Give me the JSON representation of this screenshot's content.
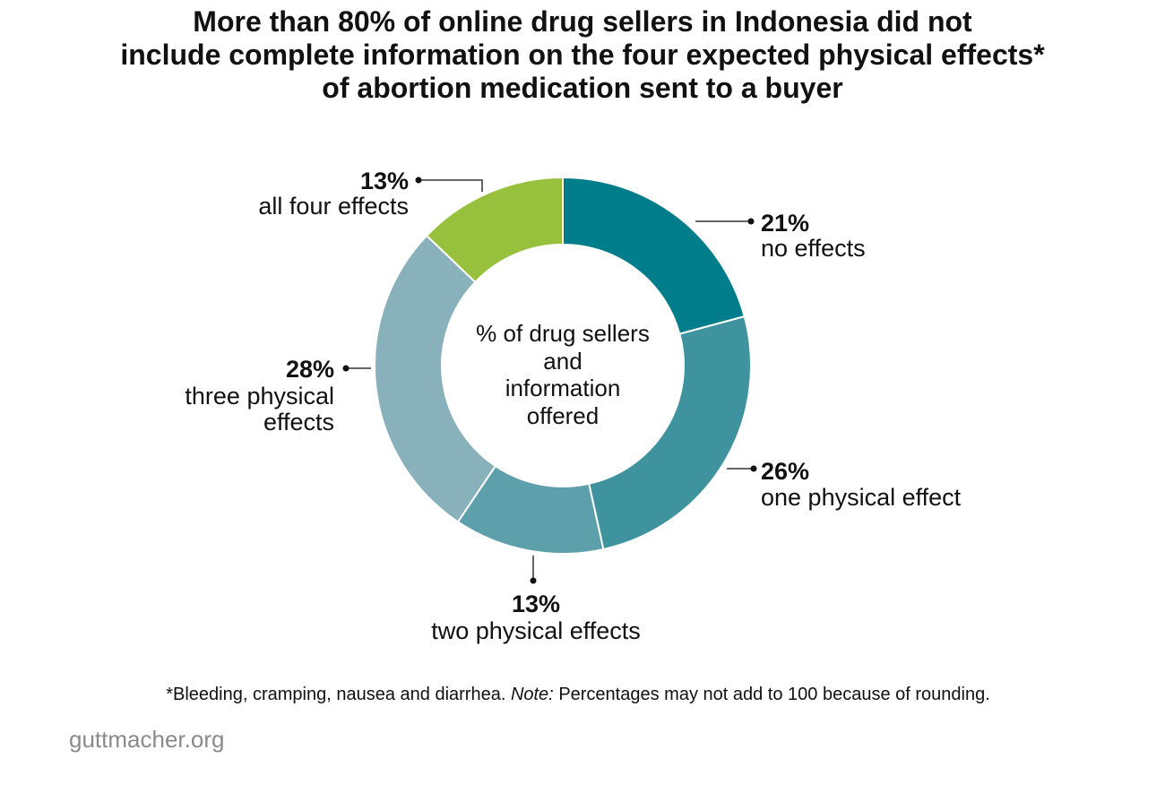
{
  "title_lines": [
    "More than 80% of online drug sellers in Indonesia did not",
    "include complete information on the four expected physical effects*",
    "of abortion medication sent to a buyer"
  ],
  "chart_data": {
    "type": "pie",
    "donut": true,
    "center_label": [
      "% of drug sellers",
      "and",
      "information",
      "offered"
    ],
    "slices": [
      {
        "label": "no effects",
        "value": 21,
        "value_label": "21%",
        "color": "#007d8a"
      },
      {
        "label": "one physical effect",
        "value": 26,
        "value_label": "26%",
        "color": "#3e939f"
      },
      {
        "label": "two physical effects",
        "value": 13,
        "value_label": "13%",
        "color": "#5d9fab"
      },
      {
        "label": "three physical effects",
        "value": 28,
        "value_label": "28%",
        "color": "#88b1bb"
      },
      {
        "label": "all four effects",
        "value": 13,
        "value_label": "13%",
        "color": "#97c13d"
      }
    ]
  },
  "footnote": {
    "prefix": "*Bleeding, cramping, nausea and diarrhea.",
    "note_label": "Note:",
    "suffix": "Percentages may not add to 100 because of rounding."
  },
  "source": "guttmacher.org"
}
